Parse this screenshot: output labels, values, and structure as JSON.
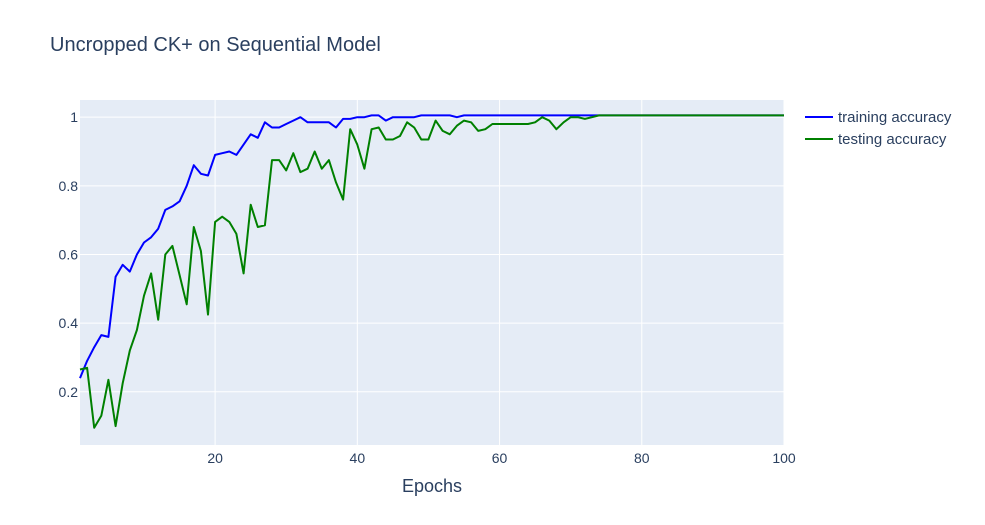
{
  "chart_data": {
    "type": "line",
    "title": "Uncropped CK+ on Sequential Model",
    "xlabel": "Epochs",
    "ylabel": "",
    "xlim": [
      1,
      100
    ],
    "ylim": [
      0.045,
      1.05
    ],
    "x_ticks": [
      20,
      40,
      60,
      80,
      100
    ],
    "y_ticks": [
      0.2,
      0.4,
      0.6,
      0.8,
      1
    ],
    "grid": true,
    "legend_position": "top-right",
    "plot_background": "#e5ecf6",
    "series": [
      {
        "name": "training accuracy",
        "color": "#0000ff",
        "x": [
          1,
          2,
          3,
          4,
          5,
          6,
          7,
          8,
          9,
          10,
          11,
          12,
          13,
          14,
          15,
          16,
          17,
          18,
          19,
          20,
          21,
          22,
          23,
          24,
          25,
          26,
          27,
          28,
          29,
          30,
          31,
          32,
          33,
          34,
          35,
          36,
          37,
          38,
          39,
          40,
          41,
          42,
          43,
          44,
          45,
          46,
          47,
          48,
          49,
          50,
          51,
          52,
          53,
          54,
          55,
          56,
          57,
          58,
          59,
          60,
          61,
          62,
          63,
          64,
          65,
          66,
          67,
          68,
          69,
          70,
          71,
          72,
          73,
          74,
          75,
          76,
          77,
          78,
          79,
          80,
          81,
          82,
          83,
          84,
          85,
          86,
          87,
          88,
          89,
          90,
          91,
          92,
          93,
          94,
          95,
          96,
          97,
          98,
          99,
          100
        ],
        "values": [
          0.24,
          0.29,
          0.33,
          0.365,
          0.36,
          0.535,
          0.57,
          0.55,
          0.6,
          0.635,
          0.65,
          0.675,
          0.73,
          0.74,
          0.755,
          0.8,
          0.86,
          0.835,
          0.83,
          0.89,
          0.895,
          0.9,
          0.89,
          0.92,
          0.95,
          0.94,
          0.985,
          0.97,
          0.97,
          0.98,
          0.99,
          1.0,
          0.985,
          0.985,
          0.985,
          0.985,
          0.97,
          0.995,
          0.995,
          1.0,
          1.0,
          1.005,
          1.005,
          0.99,
          1.0,
          1.0,
          1.0,
          1.0,
          1.005,
          1.005,
          1.005,
          1.005,
          1.005,
          1.0,
          1.005,
          1.005,
          1.005,
          1.005,
          1.005,
          1.005,
          1.005,
          1.005,
          1.005,
          1.005,
          1.005,
          1.005,
          1.005,
          1.005,
          1.005,
          1.005,
          1.005,
          1.005,
          1.005,
          1.005,
          1.005,
          1.005,
          1.005,
          1.005,
          1.005,
          1.005,
          1.005,
          1.005,
          1.005,
          1.005,
          1.005,
          1.005,
          1.005,
          1.005,
          1.005,
          1.005,
          1.005,
          1.005,
          1.005,
          1.005,
          1.005,
          1.005,
          1.005,
          1.005,
          1.005,
          1.005
        ]
      },
      {
        "name": "testing accuracy",
        "color": "#008000",
        "x": [
          1,
          2,
          3,
          4,
          5,
          6,
          7,
          8,
          9,
          10,
          11,
          12,
          13,
          14,
          15,
          16,
          17,
          18,
          19,
          20,
          21,
          22,
          23,
          24,
          25,
          26,
          27,
          28,
          29,
          30,
          31,
          32,
          33,
          34,
          35,
          36,
          37,
          38,
          39,
          40,
          41,
          42,
          43,
          44,
          45,
          46,
          47,
          48,
          49,
          50,
          51,
          52,
          53,
          54,
          55,
          56,
          57,
          58,
          59,
          60,
          61,
          62,
          63,
          64,
          65,
          66,
          67,
          68,
          69,
          70,
          71,
          72,
          73,
          74,
          75,
          76,
          77,
          78,
          79,
          80,
          81,
          82,
          83,
          84,
          85,
          86,
          87,
          88,
          89,
          90,
          91,
          92,
          93,
          94,
          95,
          96,
          97,
          98,
          99,
          100
        ],
        "values": [
          0.265,
          0.27,
          0.095,
          0.13,
          0.235,
          0.1,
          0.225,
          0.32,
          0.38,
          0.48,
          0.545,
          0.41,
          0.6,
          0.625,
          0.54,
          0.455,
          0.68,
          0.61,
          0.425,
          0.695,
          0.71,
          0.695,
          0.66,
          0.545,
          0.745,
          0.68,
          0.685,
          0.875,
          0.875,
          0.845,
          0.895,
          0.84,
          0.85,
          0.9,
          0.85,
          0.875,
          0.81,
          0.76,
          0.965,
          0.92,
          0.85,
          0.965,
          0.97,
          0.935,
          0.935,
          0.945,
          0.985,
          0.97,
          0.935,
          0.935,
          0.99,
          0.96,
          0.95,
          0.975,
          0.99,
          0.985,
          0.96,
          0.965,
          0.98,
          0.98,
          0.98,
          0.98,
          0.98,
          0.98,
          0.985,
          1.0,
          0.99,
          0.965,
          0.985,
          1.0,
          1.0,
          0.995,
          1.0,
          1.005,
          1.005,
          1.005,
          1.005,
          1.005,
          1.005,
          1.005,
          1.005,
          1.005,
          1.005,
          1.005,
          1.005,
          1.005,
          1.005,
          1.005,
          1.005,
          1.005,
          1.005,
          1.005,
          1.005,
          1.005,
          1.005,
          1.005,
          1.005,
          1.005,
          1.005,
          1.005
        ]
      }
    ]
  }
}
